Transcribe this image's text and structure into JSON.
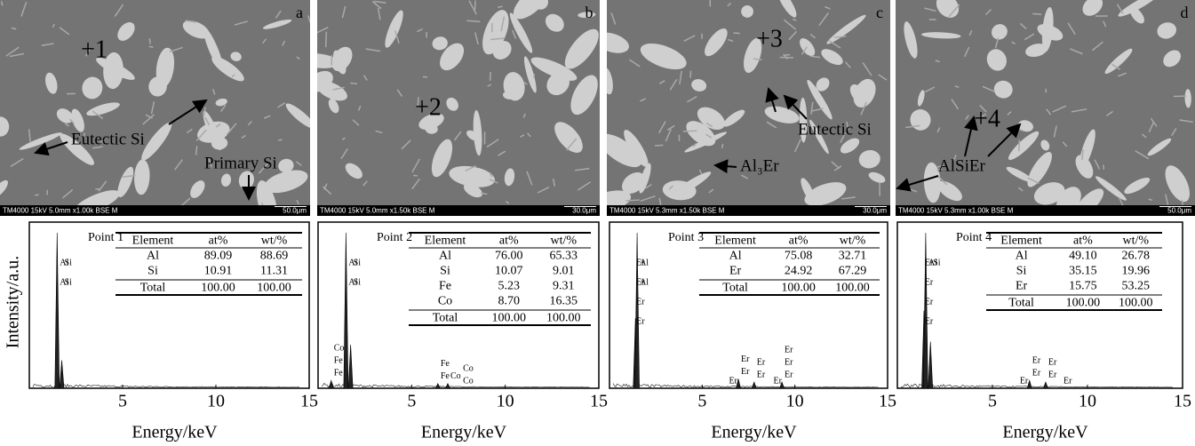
{
  "figure": {
    "ylabel": "Intensity/a.u.",
    "xlabel": "Energy/keV",
    "xlim": [
      0,
      15
    ],
    "xticks": [
      5,
      10,
      15
    ],
    "panels": [
      {
        "letter": "a",
        "marker": "+1",
        "annotations": [
          "Eutectic Si",
          "Primary Si"
        ],
        "info": "TM4000 15kV 5.0mm x1.00k BSE M",
        "scale": "50.0μm",
        "spectrum": {
          "point": "Point 1",
          "columns": [
            "Element",
            "at%",
            "wt/%"
          ],
          "rows": [
            [
              "Al",
              "89.09",
              "88.69"
            ],
            [
              "Si",
              "10.91",
              "11.31"
            ]
          ],
          "total": [
            "Total",
            "100.00",
            "100.00"
          ],
          "peaks": [
            {
              "energy": 1.49,
              "intensity": 100
            },
            {
              "energy": 1.74,
              "intensity": 18
            }
          ],
          "peak_labels": [
            {
              "text": "Al",
              "energy": 1.49
            },
            {
              "text": "Al",
              "energy": 1.49
            },
            {
              "text": "Si",
              "energy": 1.74
            },
            {
              "text": "Si",
              "energy": 1.74
            }
          ]
        }
      },
      {
        "letter": "b",
        "marker": "+2",
        "annotations": [],
        "info": "TM4000 15kV 5.0mm x1.50k BSE M",
        "scale": "30.0μm",
        "spectrum": {
          "point": "Point 2",
          "columns": [
            "Element",
            "at%",
            "wt/%"
          ],
          "rows": [
            [
              "Al",
              "76.00",
              "65.33"
            ],
            [
              "Si",
              "10.07",
              "9.01"
            ],
            [
              "Fe",
              "5.23",
              "9.31"
            ],
            [
              "Co",
              "8.70",
              "16.35"
            ]
          ],
          "total": [
            "Total",
            "100.00",
            "100.00"
          ],
          "peaks": [
            {
              "energy": 0.7,
              "intensity": 5
            },
            {
              "energy": 1.49,
              "intensity": 100
            },
            {
              "energy": 1.74,
              "intensity": 28
            },
            {
              "energy": 6.4,
              "intensity": 3
            },
            {
              "energy": 6.93,
              "intensity": 3
            }
          ],
          "peak_labels": [
            {
              "text": "Al",
              "energy": 1.49
            },
            {
              "text": "Al",
              "energy": 1.49
            },
            {
              "text": "Si",
              "energy": 1.74
            },
            {
              "text": "Si",
              "energy": 1.74
            },
            {
              "text": "Co",
              "energy": 0.7
            },
            {
              "text": "Fe",
              "energy": 0.7
            },
            {
              "text": "Fe",
              "energy": 0.7
            },
            {
              "text": "Co",
              "energy": 6.93
            },
            {
              "text": "Fe",
              "energy": 6.4
            },
            {
              "text": "Fe",
              "energy": 6.4
            },
            {
              "text": "Co",
              "energy": 7.6
            },
            {
              "text": "Co",
              "energy": 7.6
            }
          ]
        }
      },
      {
        "letter": "c",
        "marker": "+3",
        "annotations": [
          "Al₃Er",
          "Eutectic Si"
        ],
        "info": "TM4000 15kV 5.3mm x1.50k BSE M",
        "scale": "30.0μm",
        "spectrum": {
          "point": "Point 3",
          "columns": [
            "Element",
            "at%",
            "wt/%"
          ],
          "rows": [
            [
              "Al",
              "75.08",
              "32.71"
            ],
            [
              "Er",
              "24.92",
              "67.29"
            ]
          ],
          "total": [
            "Total",
            "100.00",
            "100.00"
          ],
          "peaks": [
            {
              "energy": 1.4,
              "intensity": 45
            },
            {
              "energy": 1.49,
              "intensity": 100
            },
            {
              "energy": 6.95,
              "intensity": 6
            },
            {
              "energy": 7.8,
              "intensity": 4
            },
            {
              "energy": 9.3,
              "intensity": 4
            }
          ],
          "peak_labels": [
            {
              "text": "Al",
              "energy": 1.49
            },
            {
              "text": "Al",
              "energy": 1.49
            },
            {
              "text": "Er",
              "energy": 1.3
            },
            {
              "text": "Er",
              "energy": 1.3
            },
            {
              "text": "Er",
              "energy": 1.3
            },
            {
              "text": "Er",
              "energy": 1.3
            },
            {
              "text": "Er",
              "energy": 6.95
            },
            {
              "text": "Er",
              "energy": 6.95
            },
            {
              "text": "Er",
              "energy": 7.8
            },
            {
              "text": "Er",
              "energy": 7.8
            },
            {
              "text": "Er",
              "energy": 9.3
            },
            {
              "text": "Er",
              "energy": 9.3
            },
            {
              "text": "Er",
              "energy": 9.3
            },
            {
              "text": "Er",
              "energy": 6.3
            },
            {
              "text": "Er",
              "energy": 8.7
            }
          ]
        }
      },
      {
        "letter": "d",
        "marker": "+4",
        "annotations": [
          "AlSiEr"
        ],
        "info": "TM4000 15kV 5.3mm x1.00k BSE M",
        "scale": "50.0μm",
        "spectrum": {
          "point": "Point 4",
          "columns": [
            "Element",
            "at%",
            "wt/%"
          ],
          "rows": [
            [
              "Al",
              "49.10",
              "26.78"
            ],
            [
              "Si",
              "35.15",
              "19.96"
            ],
            [
              "Er",
              "15.75",
              "53.25"
            ]
          ],
          "total": [
            "Total",
            "100.00",
            "100.00"
          ],
          "peaks": [
            {
              "energy": 1.4,
              "intensity": 50
            },
            {
              "energy": 1.49,
              "intensity": 100
            },
            {
              "energy": 1.74,
              "intensity": 30
            },
            {
              "energy": 6.95,
              "intensity": 5
            },
            {
              "energy": 7.8,
              "intensity": 4
            }
          ],
          "peak_labels": [
            {
              "text": "Al",
              "energy": 1.49
            },
            {
              "text": "Er",
              "energy": 1.3
            },
            {
              "text": "Er",
              "energy": 1.3
            },
            {
              "text": "Er",
              "energy": 1.3
            },
            {
              "text": "Er",
              "energy": 1.3
            },
            {
              "text": "Si",
              "energy": 1.74
            },
            {
              "text": "Er",
              "energy": 6.95
            },
            {
              "text": "Er",
              "energy": 6.95
            },
            {
              "text": "Er",
              "energy": 7.8
            },
            {
              "text": "Er",
              "energy": 7.8
            },
            {
              "text": "Er",
              "energy": 6.3
            },
            {
              "text": "Er",
              "energy": 8.6
            }
          ]
        }
      }
    ]
  }
}
